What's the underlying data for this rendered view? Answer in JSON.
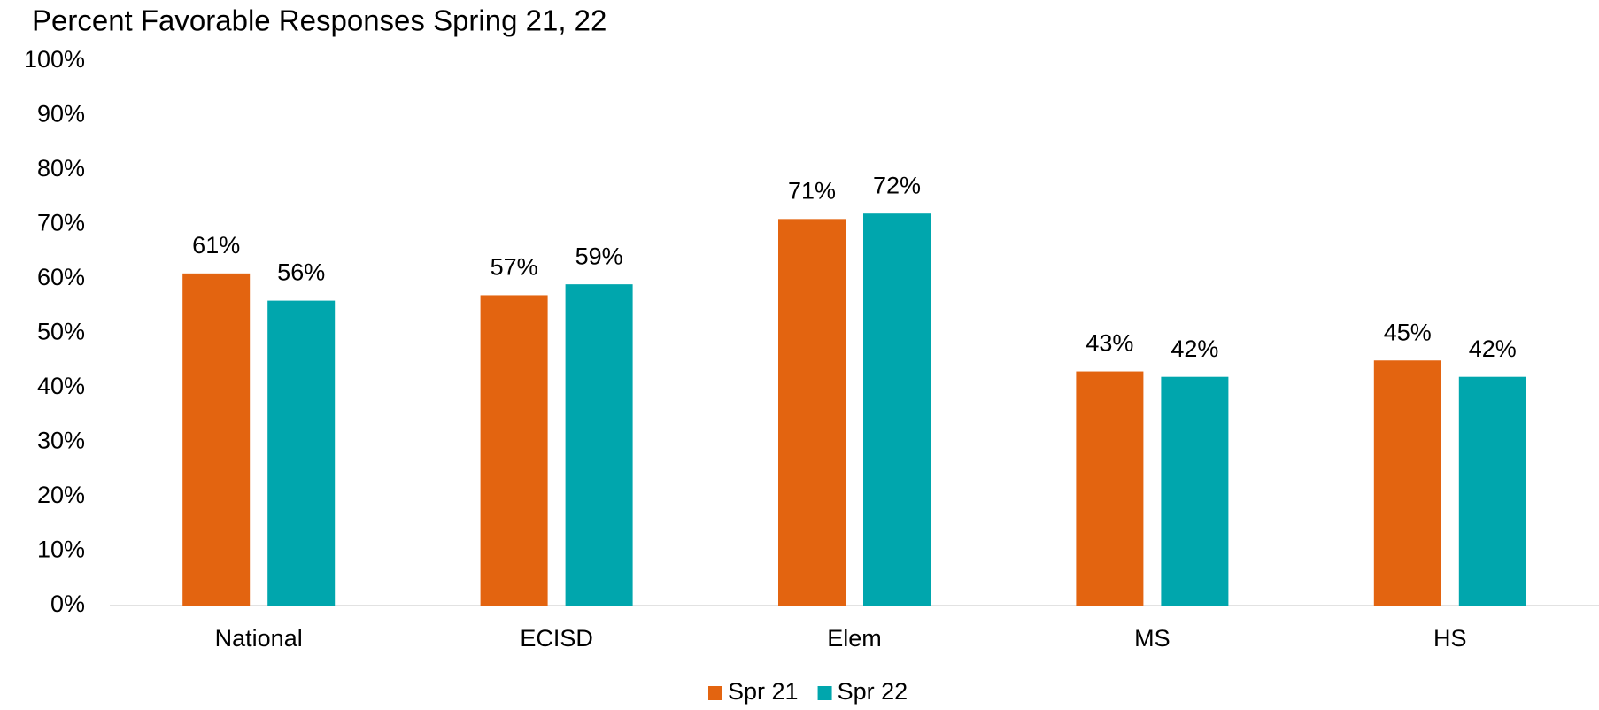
{
  "chart_data": {
    "type": "bar",
    "title": "Percent Favorable Responses Spring 21, 22",
    "categories": [
      "National",
      "ECISD",
      "Elem",
      "MS",
      "HS"
    ],
    "series": [
      {
        "name": "Spr 21",
        "color": "#e36410",
        "values": [
          61,
          57,
          71,
          43,
          45
        ],
        "value_labels": [
          "61%",
          "57%",
          "71%",
          "43%",
          "45%"
        ]
      },
      {
        "name": "Spr 22",
        "color": "#00a6ad",
        "values": [
          56,
          59,
          72,
          42,
          42
        ],
        "value_labels": [
          "56%",
          "59%",
          "72%",
          "42%",
          "42%"
        ]
      }
    ],
    "ylim": [
      0,
      100
    ],
    "yticks": [
      {
        "value": 0,
        "label": "0%"
      },
      {
        "value": 10,
        "label": "10%"
      },
      {
        "value": 20,
        "label": "20%"
      },
      {
        "value": 30,
        "label": "30%"
      },
      {
        "value": 40,
        "label": "40%"
      },
      {
        "value": 50,
        "label": "50%"
      },
      {
        "value": 60,
        "label": "60%"
      },
      {
        "value": 70,
        "label": "70%"
      },
      {
        "value": 80,
        "label": "80%"
      },
      {
        "value": 90,
        "label": "90%"
      },
      {
        "value": 100,
        "label": "100%"
      }
    ],
    "grid": false,
    "legend": "bottom"
  }
}
